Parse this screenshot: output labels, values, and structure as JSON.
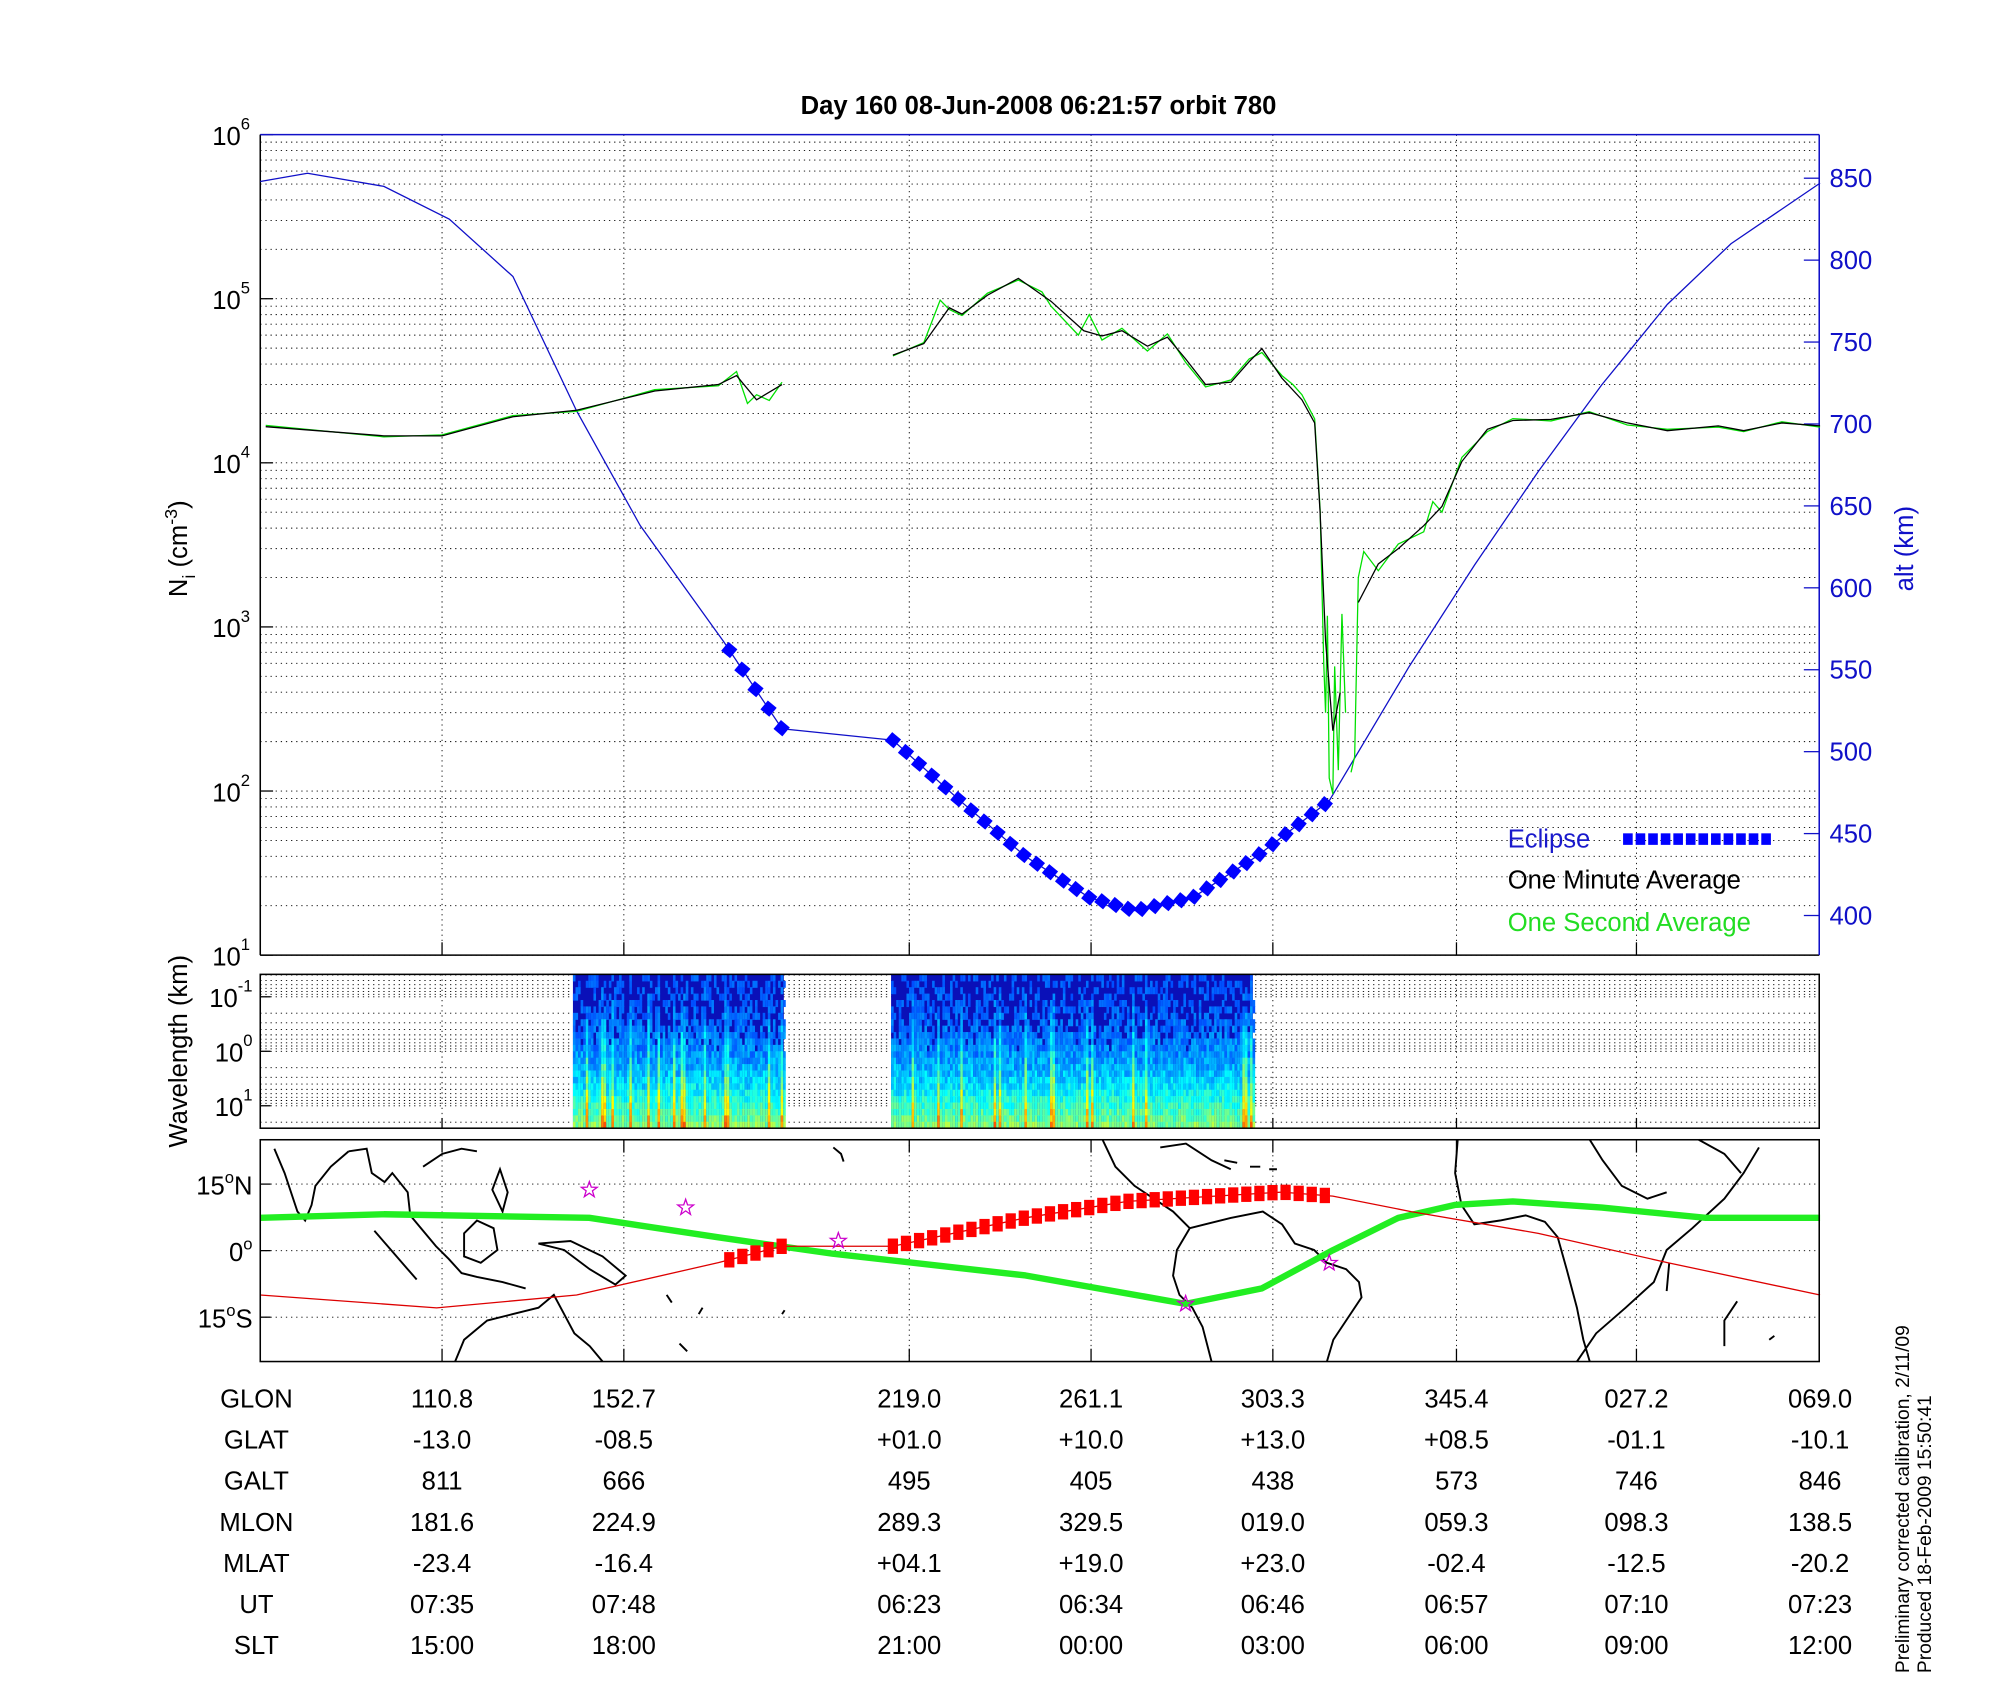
{
  "title": "Day 160  08-Jun-2008 06:21:57   orbit 780",
  "side_note": {
    "line1": "Preliminary corrected calibration, 2/11/09",
    "line2": "Produced 18-Feb-2009 15:50:41"
  },
  "colors": {
    "alt": "#1010c8",
    "eclipse": "#0000ff",
    "minute": "#000000",
    "second": "#00e000",
    "track": "#dd0000",
    "eclipse_track": "#ff0000",
    "dip_equator": "#22ee22",
    "star": "#cc00cc"
  },
  "chart_data": [
    {
      "type": "line",
      "name": "ion-density",
      "title": "Day 160  08-Jun-2008 06:21:57   orbit 780",
      "ylabel": {
        "main": "N",
        "sub": "i",
        "unit_open": " (cm",
        "unit_exp": "-3",
        "unit_close": ")"
      },
      "yscale": "log",
      "ylim": [
        10,
        1000000
      ],
      "y_ticks": [
        {
          "base": "10",
          "exp": "6",
          "v": 6
        },
        {
          "base": "10",
          "exp": "5",
          "v": 5
        },
        {
          "base": "10",
          "exp": "4",
          "v": 4
        },
        {
          "base": "10",
          "exp": "3",
          "v": 3
        },
        {
          "base": "10",
          "exp": "2",
          "v": 2
        },
        {
          "base": "10",
          "exp": "1",
          "v": 1
        }
      ],
      "y2label": "alt (km)",
      "y2lim": [
        375,
        875
      ],
      "y2_ticks": [
        400,
        450,
        500,
        550,
        600,
        650,
        700,
        750,
        800,
        850
      ],
      "xlim": [
        0,
        8.58
      ],
      "x_ticks": [
        1,
        2,
        3.57,
        4.57,
        5.57,
        6.58,
        7.57,
        8.58
      ],
      "grid": true,
      "legend": {
        "position": "bottom-right",
        "entries": [
          "Eclipse",
          "One Minute Average",
          "One Second Average"
        ]
      },
      "series": [
        {
          "name": "One Minute Average",
          "segments": [
            [
              [
                0.03,
                16600
              ],
              [
                0.68,
                14600
              ],
              [
                1.0,
                14600
              ],
              [
                1.39,
                19100
              ],
              [
                1.74,
                20900
              ],
              [
                2.17,
                27400
              ],
              [
                2.52,
                30000
              ],
              [
                2.62,
                34000
              ],
              [
                2.73,
                24200
              ],
              [
                2.87,
                30000
              ]
            ],
            [
              [
                3.48,
                45300
              ],
              [
                3.65,
                53300
              ],
              [
                3.79,
                88100
              ],
              [
                3.86,
                80600
              ],
              [
                4.0,
                105000
              ],
              [
                4.17,
                133000
              ],
              [
                4.35,
                96400
              ],
              [
                4.53,
                63800
              ],
              [
                4.63,
                59300
              ],
              [
                4.74,
                63800
              ],
              [
                4.88,
                51400
              ],
              [
                4.99,
                58300
              ],
              [
                5.09,
                43000
              ],
              [
                5.2,
                30000
              ],
              [
                5.34,
                31000
              ],
              [
                5.44,
                41400
              ],
              [
                5.51,
                49600
              ],
              [
                5.62,
                32800
              ],
              [
                5.73,
                24200
              ],
              [
                5.8,
                17500
              ],
              [
                5.83,
                4960
              ],
              [
                5.86,
                820
              ],
              [
                5.9,
                233
              ],
              [
                5.94,
                398
              ]
            ],
            [
              [
                6.04,
                1410
              ],
              [
                6.15,
                2420
              ],
              [
                6.26,
                3000
              ],
              [
                6.4,
                4140
              ],
              [
                6.5,
                5420
              ],
              [
                6.61,
                10200
              ],
              [
                6.75,
                16000
              ],
              [
                6.89,
                18100
              ],
              [
                7.1,
                18400
              ],
              [
                7.31,
                20200
              ],
              [
                7.52,
                17500
              ],
              [
                7.74,
                15700
              ],
              [
                8.02,
                16800
              ],
              [
                8.16,
                15700
              ],
              [
                8.37,
                17500
              ],
              [
                8.58,
                16800
              ]
            ]
          ]
        },
        {
          "name": "One Second Average",
          "segments": [
            [
              [
                0.03,
                16900
              ],
              [
                0.68,
                14400
              ],
              [
                1.0,
                14800
              ],
              [
                1.39,
                19400
              ],
              [
                1.74,
                20600
              ],
              [
                2.17,
                27900
              ],
              [
                2.52,
                29500
              ],
              [
                2.62,
                36000
              ],
              [
                2.68,
                23000
              ],
              [
                2.73,
                26000
              ],
              [
                2.8,
                24000
              ],
              [
                2.87,
                31000
              ]
            ],
            [
              [
                3.48,
                44800
              ],
              [
                3.65,
                54000
              ],
              [
                3.74,
                98000
              ],
              [
                3.79,
                86000
              ],
              [
                3.86,
                79000
              ],
              [
                4.0,
                108000
              ],
              [
                4.17,
                130000
              ],
              [
                4.3,
                110000
              ],
              [
                4.35,
                90000
              ],
              [
                4.5,
                60000
              ],
              [
                4.56,
                80000
              ],
              [
                4.63,
                56000
              ],
              [
                4.74,
                66000
              ],
              [
                4.88,
                48000
              ],
              [
                4.99,
                61000
              ],
              [
                5.09,
                41000
              ],
              [
                5.2,
                29000
              ],
              [
                5.34,
                32000
              ],
              [
                5.44,
                43000
              ],
              [
                5.51,
                47000
              ],
              [
                5.62,
                34000
              ],
              [
                5.68,
                30000
              ],
              [
                5.73,
                26000
              ],
              [
                5.8,
                18500
              ],
              [
                5.83,
                5200
              ],
              [
                5.85,
                600
              ],
              [
                5.86,
                300
              ],
              [
                5.87,
                1170
              ],
              [
                5.88,
                120
              ],
              [
                5.9,
                96
              ],
              [
                5.91,
                575
              ],
              [
                5.93,
                134
              ],
              [
                5.95,
                1200
              ],
              [
                5.97,
                300
              ]
            ],
            [
              [
                6.0,
                130
              ],
              [
                6.02,
                162
              ],
              [
                6.04,
                2000
              ],
              [
                6.07,
                2880
              ],
              [
                6.15,
                2200
              ],
              [
                6.26,
                3200
              ],
              [
                6.4,
                3800
              ],
              [
                6.45,
                5800
              ],
              [
                6.5,
                5000
              ],
              [
                6.61,
                10800
              ],
              [
                6.75,
                15500
              ],
              [
                6.89,
                18600
              ],
              [
                7.1,
                18000
              ],
              [
                7.31,
                20500
              ],
              [
                7.52,
                17000
              ],
              [
                7.74,
                16000
              ],
              [
                8.02,
                16500
              ],
              [
                8.16,
                15500
              ],
              [
                8.37,
                17800
              ],
              [
                8.58,
                16500
              ]
            ]
          ]
        }
      ],
      "altitude": {
        "name": "alt (km)",
        "points": [
          [
            0,
            848
          ],
          [
            0.26,
            853
          ],
          [
            0.68,
            845
          ],
          [
            1.04,
            825
          ],
          [
            1.39,
            790
          ],
          [
            1.74,
            708
          ],
          [
            2.09,
            638
          ],
          [
            2.55,
            567
          ],
          [
            2.87,
            514
          ],
          [
            3.48,
            507
          ],
          [
            3.85,
            470
          ],
          [
            4.21,
            436
          ],
          [
            4.56,
            411
          ],
          [
            4.81,
            403
          ],
          [
            5.13,
            411
          ],
          [
            5.48,
            436
          ],
          [
            5.88,
            470
          ],
          [
            6.32,
            552
          ],
          [
            6.68,
            614
          ],
          [
            7.03,
            671
          ],
          [
            7.38,
            724
          ],
          [
            7.74,
            773
          ],
          [
            8.09,
            810
          ],
          [
            8.58,
            847
          ]
        ]
      },
      "eclipse_ranges": [
        [
          2.58,
          2.88
        ],
        [
          3.48,
          5.9
        ]
      ]
    },
    {
      "type": "heatmap",
      "name": "wavelength-spectrogram",
      "ylabel": "Wavelength (km)",
      "yscale": "log",
      "y_ticks": [
        {
          "base": "10",
          "exp": "-1",
          "v": -1
        },
        {
          "base": "10",
          "exp": "0",
          "v": 0
        },
        {
          "base": "10",
          "exp": "1",
          "v": 1
        }
      ],
      "ylim": [
        0.039,
        25
      ],
      "data_ranges": [
        [
          1.72,
          2.88
        ],
        [
          3.47,
          5.46
        ]
      ],
      "colormap": "jet"
    },
    {
      "type": "line",
      "name": "ground-track-map",
      "lat_ticks": [
        {
          "v": 15,
          "num": "15",
          "hem": "N"
        },
        {
          "v": 0,
          "num": "0",
          "hem": ""
        },
        {
          "v": -15,
          "num": "15",
          "hem": "S"
        }
      ],
      "deg_symbol": "o",
      "ylim": [
        -25,
        25
      ],
      "dip_equator": [
        [
          0,
          7.4
        ],
        [
          0.68,
          8.2
        ],
        [
          1.81,
          7.4
        ],
        [
          2.52,
          3.0
        ],
        [
          3.15,
          -0.7
        ],
        [
          4.21,
          -5.6
        ],
        [
          5.09,
          -12.0
        ],
        [
          5.51,
          -8.5
        ],
        [
          5.9,
          0.1
        ],
        [
          6.26,
          7.4
        ],
        [
          6.57,
          10.3
        ],
        [
          6.89,
          11.1
        ],
        [
          7.38,
          9.7
        ],
        [
          7.95,
          7.4
        ],
        [
          8.58,
          7.4
        ]
      ],
      "ground_track": [
        [
          0,
          -10.0
        ],
        [
          0.97,
          -12.9
        ],
        [
          1.74,
          -10.0
        ],
        [
          2.52,
          -2.7
        ],
        [
          2.87,
          1.0
        ],
        [
          3.48,
          1.0
        ],
        [
          4.21,
          7.4
        ],
        [
          4.77,
          11.1
        ],
        [
          5.62,
          13.2
        ],
        [
          5.9,
          12.3
        ],
        [
          6.33,
          8.8
        ],
        [
          7.03,
          3.9
        ],
        [
          7.74,
          -2.7
        ],
        [
          8.58,
          -10.0
        ]
      ],
      "stars": [
        [
          1.81,
          13.7
        ],
        [
          2.34,
          9.7
        ],
        [
          3.18,
          2.2
        ],
        [
          5.09,
          -12.0
        ],
        [
          5.88,
          -2.8
        ]
      ]
    }
  ],
  "table": {
    "columns_x": [
      1,
      2,
      3.57,
      4.57,
      5.57,
      6.58,
      7.57,
      8.58
    ],
    "rows": [
      {
        "label": "GLON",
        "values": [
          "110.8",
          "152.7",
          "219.0",
          "261.1",
          "303.3",
          "345.4",
          "027.2",
          "069.0"
        ]
      },
      {
        "label": "GLAT",
        "values": [
          "-13.0",
          "-08.5",
          "+01.0",
          "+10.0",
          "+13.0",
          "+08.5",
          "-01.1",
          "-10.1"
        ]
      },
      {
        "label": "GALT",
        "values": [
          "811",
          "666",
          "495",
          "405",
          "438",
          "573",
          "746",
          "846"
        ]
      },
      {
        "label": "MLON",
        "values": [
          "181.6",
          "224.9",
          "289.3",
          "329.5",
          "019.0",
          "059.3",
          "098.3",
          "138.5"
        ]
      },
      {
        "label": "MLAT",
        "values": [
          "-23.4",
          "-16.4",
          "+04.1",
          "+19.0",
          "+23.0",
          "-02.4",
          "-12.5",
          "-20.2"
        ]
      },
      {
        "label": "UT",
        "values": [
          "07:35",
          "07:48",
          "06:23",
          "06:34",
          "06:46",
          "06:57",
          "07:10",
          "07:23"
        ]
      },
      {
        "label": "SLT",
        "values": [
          "15:00",
          "18:00",
          "21:00",
          "00:00",
          "03:00",
          "06:00",
          "09:00",
          "12:00"
        ]
      }
    ]
  }
}
